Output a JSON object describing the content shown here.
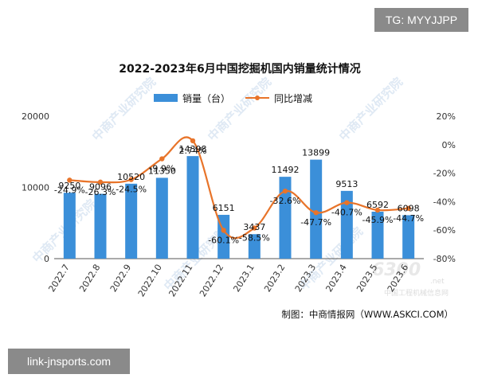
{
  "badges": {
    "top_right": "TG: MYYJJPP",
    "bottom_left": "link-jnsports.com"
  },
  "chart_data": {
    "type": "bar",
    "title": "2022-2023年6月中国挖掘机国内销量统计情况",
    "categories": [
      "2022.7",
      "2022.8",
      "2022.9",
      "2022.10",
      "2022.11",
      "2022.12",
      "2023.1",
      "2023.2",
      "2023.3",
      "2023.4",
      "2023.5",
      "2023.6"
    ],
    "series": [
      {
        "name": "销量（台）",
        "type": "bar",
        "axis": "left",
        "color": "#3b8fd9",
        "values": [
          9250,
          9096,
          10520,
          11350,
          14398,
          6151,
          3437,
          11492,
          13899,
          9513,
          6592,
          6098
        ],
        "labels": [
          "9250",
          "9096",
          "10520",
          "11350",
          "14398",
          "6151",
          "3437",
          "11492",
          "13899",
          "9513",
          "6592",
          "6098"
        ]
      },
      {
        "name": "同比增减",
        "type": "line",
        "axis": "right",
        "color": "#e8742a",
        "values": [
          -24.9,
          -26.3,
          -24.5,
          -9.9,
          2.74,
          -60.1,
          -58.5,
          -32.6,
          -47.7,
          -40.7,
          -45.9,
          -44.7
        ],
        "labels": [
          "-24.9%",
          "-26.3%",
          "-24.5%",
          "-9.9%",
          "2.74%",
          "-60.1%",
          "-58.5%",
          "-32.6%",
          "-47.7%",
          "-40.7%",
          "-45.9%",
          "-44.7%"
        ]
      }
    ],
    "y_left": {
      "range": [
        0,
        20000
      ],
      "ticks": [
        0,
        10000,
        20000
      ],
      "tick_labels": [
        "0",
        "10000",
        "20000"
      ]
    },
    "y_right": {
      "range": [
        -80,
        20
      ],
      "ticks": [
        20,
        0,
        -20,
        -40,
        -60,
        -80
      ],
      "tick_labels": [
        "20%",
        "0%",
        "-20%",
        "-40%",
        "-60%",
        "-80%"
      ]
    },
    "legend": {
      "position": "top-center"
    },
    "grid": false,
    "source": "制图：中商情报网（WWW.ASKCI.COM）",
    "watermarks": [
      "中商产业研究院",
      "6300",
      ".net",
      "中国工程机械信息网"
    ]
  }
}
